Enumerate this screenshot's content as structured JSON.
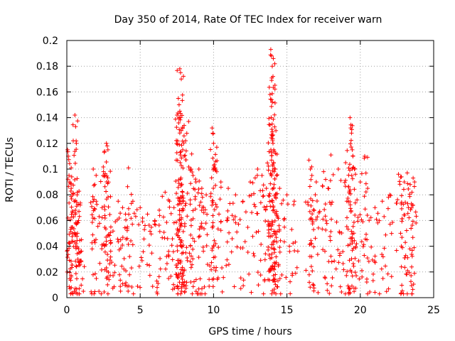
{
  "chart_data": {
    "type": "scatter",
    "title": "Day 350 of 2014, Rate Of TEC Index for receiver warn",
    "xlabel": "GPS time / hours",
    "ylabel": "ROTI / TECUs",
    "xlim": [
      0,
      25
    ],
    "ylim": [
      0,
      0.2
    ],
    "x_ticks": [
      0,
      5,
      10,
      15,
      20,
      25
    ],
    "y_ticks": [
      0,
      0.02,
      0.04,
      0.06,
      0.08,
      0.1,
      0.12,
      0.14,
      0.16,
      0.18,
      0.2
    ],
    "x_tick_labels": [
      "0",
      "5",
      "10",
      "15",
      "20",
      "25"
    ],
    "y_tick_labels": [
      "0",
      "0.02",
      "0.04",
      "0.06",
      "0.08",
      "0.1",
      "0.12",
      "0.14",
      "0.16",
      "0.18",
      "0.2"
    ],
    "grid": true,
    "marker": "+",
    "color": "#ff0000",
    "series": [
      {
        "name": "ROTI",
        "points": [
          [
            0.05,
            0.115
          ],
          [
            0.1,
            0.11
          ],
          [
            0.15,
            0.095
          ],
          [
            0.2,
            0.09
          ],
          [
            0.3,
            0.085
          ],
          [
            0.4,
            0.08
          ],
          [
            0.5,
            0.075
          ],
          [
            0.55,
            0.142
          ],
          [
            0.6,
            0.133
          ],
          [
            0.65,
            0.12
          ],
          [
            0.7,
            0.08
          ],
          [
            0.8,
            0.06
          ],
          [
            1.0,
            0.045
          ],
          [
            1.8,
            0.1
          ],
          [
            1.9,
            0.088
          ],
          [
            2.0,
            0.075
          ],
          [
            2.5,
            0.098
          ],
          [
            2.6,
            0.095
          ],
          [
            2.7,
            0.12
          ],
          [
            2.75,
            0.118
          ],
          [
            2.8,
            0.115
          ],
          [
            3.0,
            0.055
          ],
          [
            3.5,
            0.075
          ],
          [
            3.8,
            0.07
          ],
          [
            4.0,
            0.065
          ],
          [
            4.2,
            0.101
          ],
          [
            4.5,
            0.075
          ],
          [
            5.0,
            0.07
          ],
          [
            5.5,
            0.065
          ],
          [
            6.0,
            0.06
          ],
          [
            6.3,
            0.068
          ],
          [
            6.7,
            0.082
          ],
          [
            7.0,
            0.075
          ],
          [
            7.3,
            0.07
          ],
          [
            7.7,
            0.178
          ],
          [
            7.75,
            0.175
          ],
          [
            7.8,
            0.17
          ],
          [
            7.6,
            0.155
          ],
          [
            7.65,
            0.15
          ],
          [
            7.7,
            0.145
          ],
          [
            7.75,
            0.14
          ],
          [
            7.8,
            0.13
          ],
          [
            7.9,
            0.115
          ],
          [
            8.0,
            0.11
          ],
          [
            8.3,
            0.137
          ],
          [
            8.4,
            0.1
          ],
          [
            8.6,
            0.095
          ],
          [
            8.8,
            0.09
          ],
          [
            9.0,
            0.1
          ],
          [
            9.2,
            0.085
          ],
          [
            9.5,
            0.08
          ],
          [
            9.9,
            0.132
          ],
          [
            9.95,
            0.128
          ],
          [
            10.0,
            0.12
          ],
          [
            10.1,
            0.1
          ],
          [
            10.5,
            0.09
          ],
          [
            11.0,
            0.085
          ],
          [
            11.5,
            0.08
          ],
          [
            12.0,
            0.075
          ],
          [
            12.5,
            0.09
          ],
          [
            13.0,
            0.1
          ],
          [
            13.3,
            0.095
          ],
          [
            13.6,
            0.085
          ],
          [
            13.9,
            0.193
          ],
          [
            13.95,
            0.188
          ],
          [
            14.0,
            0.18
          ],
          [
            14.05,
            0.172
          ],
          [
            13.95,
            0.154
          ],
          [
            14.0,
            0.152
          ],
          [
            14.0,
            0.126
          ],
          [
            14.05,
            0.12
          ],
          [
            14.1,
            0.115
          ],
          [
            14.2,
            0.1
          ],
          [
            14.3,
            0.095
          ],
          [
            14.5,
            0.085
          ],
          [
            15.0,
            0.08
          ],
          [
            15.5,
            0.075
          ],
          [
            16.5,
            0.107
          ],
          [
            16.6,
            0.1
          ],
          [
            16.7,
            0.095
          ],
          [
            17.0,
            0.09
          ],
          [
            17.5,
            0.098
          ],
          [
            17.8,
            0.085
          ],
          [
            18.0,
            0.111
          ],
          [
            18.5,
            0.1
          ],
          [
            19.0,
            0.105
          ],
          [
            19.3,
            0.14
          ],
          [
            19.35,
            0.132
          ],
          [
            19.4,
            0.128
          ],
          [
            19.45,
            0.115
          ],
          [
            19.5,
            0.11
          ],
          [
            19.6,
            0.1
          ],
          [
            20.0,
            0.09
          ],
          [
            20.3,
            0.11
          ],
          [
            20.5,
            0.085
          ],
          [
            21.0,
            0.07
          ],
          [
            21.5,
            0.075
          ],
          [
            22.0,
            0.08
          ],
          [
            22.6,
            0.096
          ],
          [
            22.8,
            0.094
          ],
          [
            23.0,
            0.09
          ],
          [
            23.2,
            0.097
          ],
          [
            23.4,
            0.088
          ],
          [
            23.6,
            0.093
          ],
          [
            23.7,
            0.09
          ]
        ]
      }
    ]
  }
}
